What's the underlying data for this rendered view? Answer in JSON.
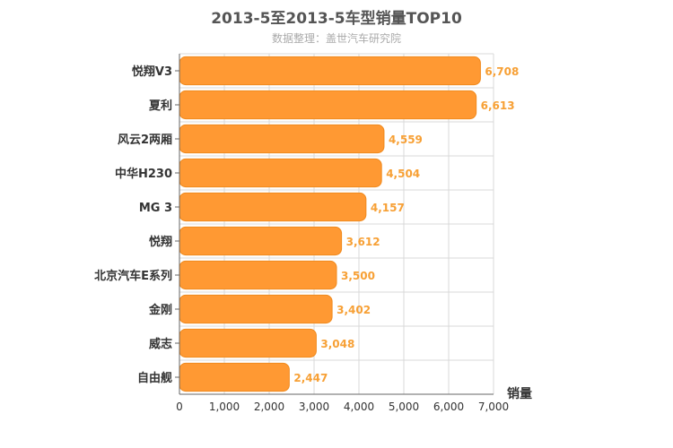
{
  "chart_data": {
    "type": "bar",
    "orientation": "horizontal",
    "title": "2013-5至2013-5车型销量TOP10",
    "subtitle": "数据整理：盖世汽车研究院",
    "xlabel": "销量",
    "categories": [
      "悦翔V3",
      "夏利",
      "风云2两厢",
      "中华H230",
      "MG 3",
      "悦翔",
      "北京汽车E系列",
      "金刚",
      "威志",
      "自由舰"
    ],
    "values": [
      6708,
      6613,
      4559,
      4504,
      4157,
      3612,
      3500,
      3402,
      3048,
      2447
    ],
    "value_labels": [
      "6,708",
      "6,613",
      "4,559",
      "4,504",
      "4,157",
      "3,612",
      "3,500",
      "3,402",
      "3,048",
      "2,447"
    ],
    "xlim": [
      0,
      7000
    ],
    "ticks": [
      0,
      1000,
      2000,
      3000,
      4000,
      5000,
      6000,
      7000
    ],
    "tick_labels": [
      "0",
      "1,000",
      "2,000",
      "3,000",
      "4,000",
      "5,000",
      "6,000",
      "7,000"
    ],
    "grid": true,
    "legend": "none",
    "colors": {
      "bar": "#ff9933",
      "bar_stroke": "#f08a1e",
      "data_label": "#f7a035",
      "grid": "#d8d8d8",
      "axis": "#666666"
    }
  }
}
